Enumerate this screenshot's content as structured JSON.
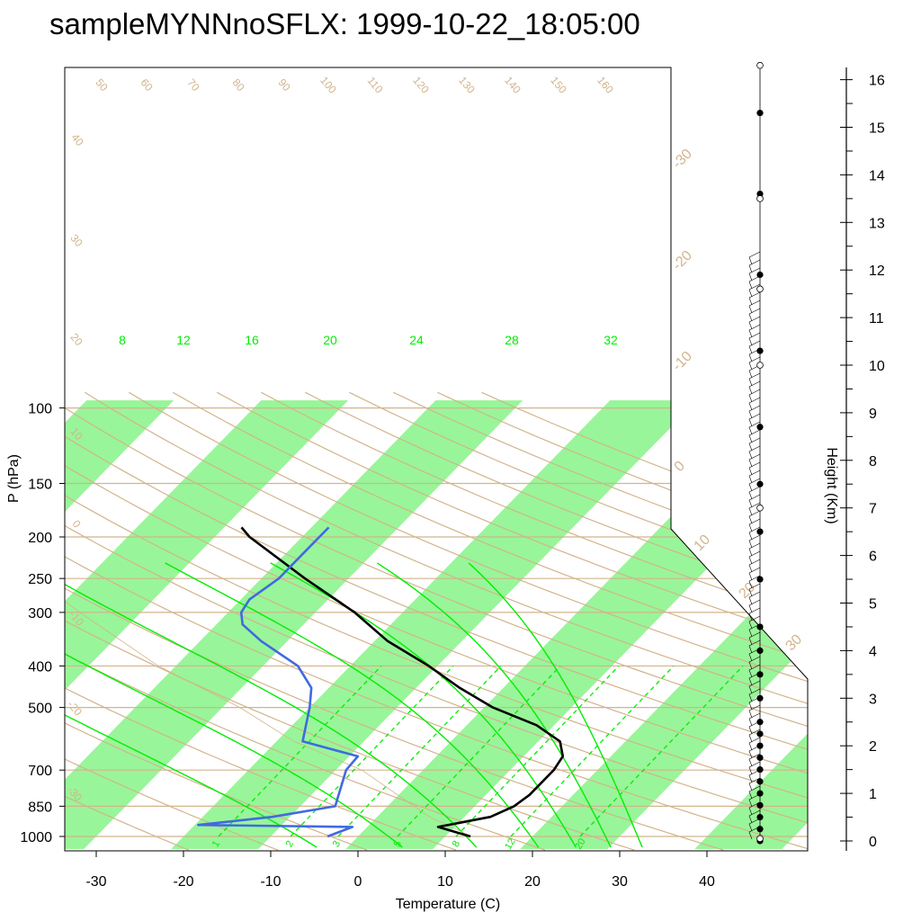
{
  "chart_data": {
    "type": "skew-t",
    "title": "sampleMYNNnoSFLX: 1999-10-22_18:05:00",
    "xlabel": "Temperature (C)",
    "ylabel": "P (hPa)",
    "right_label": "Height (Km)",
    "pressure_ticks": [
      100,
      150,
      200,
      250,
      300,
      400,
      500,
      700,
      850,
      1000
    ],
    "temperature_ticks": [
      -30,
      -20,
      -10,
      0,
      10,
      20,
      30,
      40
    ],
    "height_ticks": [
      0,
      1,
      2,
      3,
      4,
      5,
      6,
      7,
      8,
      9,
      10,
      11,
      12,
      13,
      14,
      15,
      16
    ],
    "temperature_range": [
      -33,
      52
    ],
    "pressure_range": [
      100,
      1050
    ],
    "isotherm_labels": [
      -30,
      -20,
      -10,
      0,
      10,
      20,
      30
    ],
    "theta_labels": [
      50,
      60,
      70,
      80,
      90,
      100,
      110,
      120,
      130,
      140,
      150,
      160,
      40,
      30,
      20,
      10,
      0,
      -10,
      -20,
      -30
    ],
    "moist_adiabat_labels": [
      8,
      12,
      16,
      20,
      24,
      28,
      32
    ],
    "mixing_ratio_labels": [
      1,
      2,
      3,
      5,
      8,
      12,
      20
    ],
    "colors": {
      "isotherm_band": "#99f599",
      "dry_adiabat": "#d2b48c",
      "isobar": "#d2b48c",
      "moist_adiabat": "#00ee00",
      "mixing_ratio": "#00ee00",
      "temperature": "#000000",
      "dewpoint": "#4169e1",
      "parcel": "#d2b48c"
    },
    "series": [
      {
        "key": "temperature",
        "points": [
          [
            1000,
            12.9
          ],
          [
            950,
            8.1
          ],
          [
            900,
            13.0
          ],
          [
            850,
            14.5
          ],
          [
            800,
            15.0
          ],
          [
            700,
            15.0
          ],
          [
            650,
            14.5
          ],
          [
            600,
            12.5
          ],
          [
            550,
            8.0
          ],
          [
            500,
            1.0
          ],
          [
            450,
            -5.0
          ],
          [
            400,
            -11.0
          ],
          [
            350,
            -18.5
          ],
          [
            300,
            -25.5
          ],
          [
            250,
            -35.0
          ],
          [
            200,
            -46.0
          ],
          [
            190,
            -48.0
          ]
        ]
      },
      {
        "key": "dewpoint",
        "points": [
          [
            1000,
            -3.5
          ],
          [
            950,
            -1.7
          ],
          [
            940,
            -19.6
          ],
          [
            900,
            -12.0
          ],
          [
            850,
            -6.0
          ],
          [
            700,
            -8.8
          ],
          [
            650,
            -9.0
          ],
          [
            600,
            -17.0
          ],
          [
            500,
            -20.0
          ],
          [
            450,
            -22.0
          ],
          [
            400,
            -26.0
          ],
          [
            350,
            -33.0
          ],
          [
            320,
            -37.0
          ],
          [
            300,
            -38.5
          ],
          [
            280,
            -39.0
          ],
          [
            250,
            -38.0
          ],
          [
            220,
            -38.0
          ],
          [
            190,
            -38.0
          ]
        ]
      }
    ],
    "wind_barbs": {
      "closed_marker_heights_km": [
        0,
        0.25,
        0.5,
        0.75,
        1.0,
        1.25,
        1.5,
        1.75,
        2.0,
        2.25,
        2.5,
        3.0,
        3.5,
        4.0,
        4.5,
        5.5,
        6.5,
        7.5,
        8.7,
        10.3,
        11.9,
        13.6,
        15.3
      ],
      "open_marker_heights_km": [
        0.05,
        7.0,
        10.0,
        11.6,
        13.5,
        16.3
      ]
    }
  }
}
